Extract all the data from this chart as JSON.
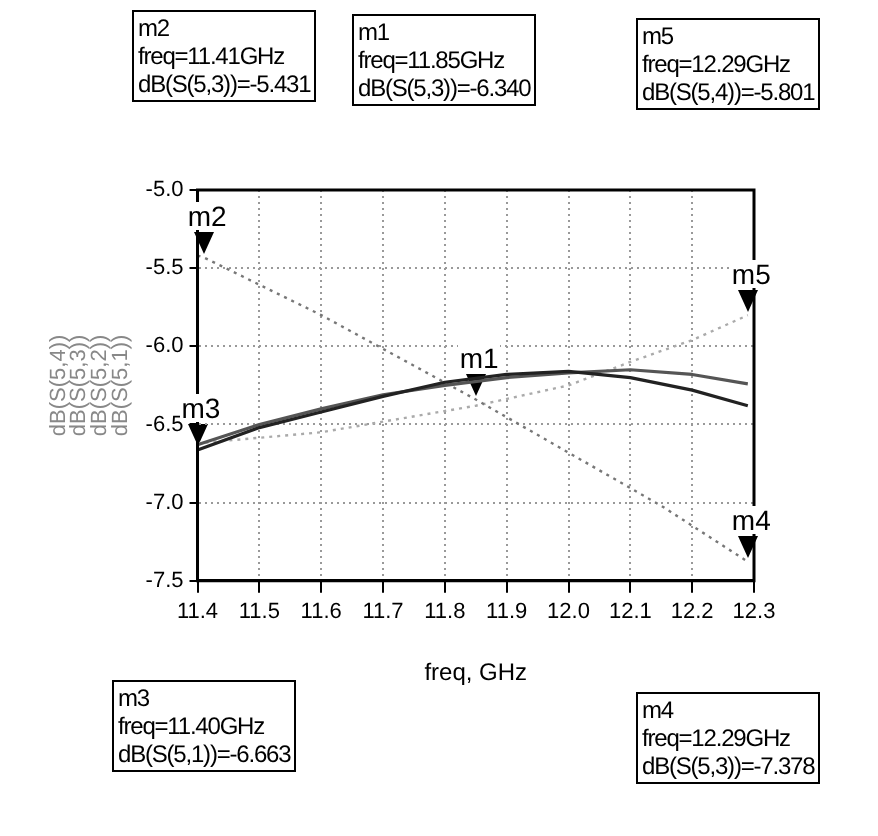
{
  "chart_data": {
    "type": "line",
    "xlabel": "freq, GHz",
    "ylabel": "dB(S(5,4))\ndB(S(5,3))\ndB(S(5,2))\ndB(S(5,1))",
    "xlim": [
      11.4,
      12.3
    ],
    "xticks": [
      11.4,
      11.5,
      11.6,
      11.7,
      11.8,
      11.9,
      {
        "value": 12.0,
        "label": "12.0"
      },
      12.1,
      12.2,
      12.3
    ],
    "ylim": [
      -7.5,
      -5.0
    ],
    "yticks": [
      {
        "value": -5.0,
        "label": "-5.0"
      },
      -5.5,
      {
        "value": -6.0,
        "label": "-6.0"
      },
      -6.5,
      {
        "value": -7.0,
        "label": "-7.0"
      },
      -7.5
    ],
    "grid": true,
    "marker": "none",
    "legend": false,
    "series": [
      {
        "color": "#222222",
        "line_style": "solid",
        "x": [
          11.4,
          11.5,
          11.6,
          11.7,
          11.8,
          11.9,
          12.0,
          12.1,
          12.2,
          12.29
        ],
        "values": [
          -6.663,
          -6.52,
          -6.42,
          -6.32,
          -6.23,
          -6.18,
          -6.16,
          -6.2,
          -6.28,
          -6.38
        ]
      },
      {
        "color": "#555555",
        "line_style": "solid",
        "x": [
          11.4,
          11.5,
          11.6,
          11.7,
          11.8,
          11.9,
          12.0,
          12.1,
          12.2,
          12.29
        ],
        "values": [
          -6.63,
          -6.5,
          -6.4,
          -6.31,
          -6.25,
          -6.2,
          -6.17,
          -6.15,
          -6.18,
          -6.24
        ]
      },
      {
        "color": "#777777",
        "line_style": "dotted",
        "x": [
          11.4,
          11.41,
          11.6,
          11.85,
          12.0,
          12.15,
          12.29
        ],
        "values": [
          -5.42,
          -5.431,
          -5.8,
          -6.34,
          -6.68,
          -7.02,
          -7.378
        ]
      },
      {
        "color": "#aaaaaa",
        "line_style": "dotted",
        "x": [
          11.4,
          11.6,
          11.85,
          12.0,
          12.1,
          12.2,
          12.29
        ],
        "values": [
          -6.62,
          -6.55,
          -6.38,
          -6.25,
          -6.1,
          -5.96,
          -5.801
        ]
      }
    ],
    "annotations": [
      {
        "text": "m2",
        "x": 11.41,
        "y": -5.431
      },
      {
        "text": "m1",
        "x": 11.85,
        "y": -6.34
      },
      {
        "text": "m5",
        "x": 12.29,
        "y": -5.801
      },
      {
        "text": "m3",
        "x": 11.4,
        "y": -6.663
      },
      {
        "text": "m4",
        "x": 12.29,
        "y": -7.378
      },
      "m2\nfreq=11.41GHz\ndB(S(5,3))=-5.431",
      "m1\nfreq=11.85GHz\ndB(S(5,3))=-6.340",
      "m5\nfreq=12.29GHz\ndB(S(5,4))=-5.801",
      "m3\nfreq=11.40GHz\ndB(S(5,1))=-6.663",
      "m4\nfreq=12.29GHz\ndB(S(5,3))=-7.378"
    ]
  }
}
